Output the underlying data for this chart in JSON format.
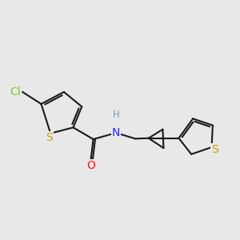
{
  "background_color": "#e8e8e8",
  "bond_color": "#1a1a1a",
  "bond_width": 1.5,
  "atom_colors": {
    "S": "#c8a000",
    "Cl": "#7fc832",
    "N": "#2020ff",
    "O": "#ff1010",
    "H": "#7a9aaa"
  },
  "font_size": 9.5,
  "fig_size": [
    3.0,
    3.0
  ],
  "dpi": 100
}
